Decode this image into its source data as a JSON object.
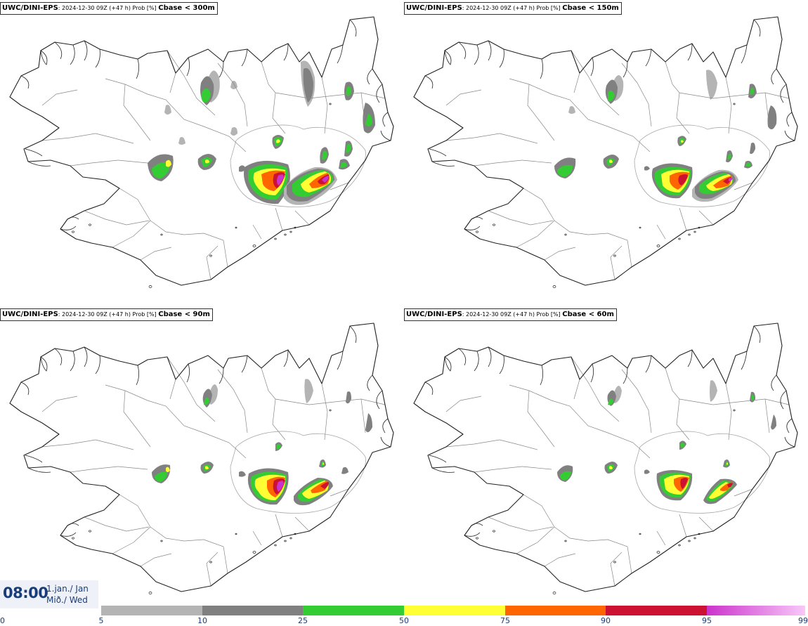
{
  "panels": [
    {
      "model": "UWC/DINI-EPS",
      "info": ": 2024-12-30 09Z (+47 h) Prob [%] ",
      "threshold": "Cbase < 300m"
    },
    {
      "model": "UWC/DINI-EPS",
      "info": ": 2024-12-30 09Z (+47 h) Prob [%] ",
      "threshold": "Cbase < 150m"
    },
    {
      "model": "UWC/DINI-EPS",
      "info": ": 2024-12-30 09Z (+47 h) Prob [%] ",
      "threshold": "Cbase < 90m"
    },
    {
      "model": "UWC/DINI-EPS",
      "info": ": 2024-12-30 09Z (+47 h) Prob [%] ",
      "threshold": "Cbase < 60m"
    }
  ],
  "time": {
    "clock": "08:00",
    "date_line1": "1.jan./ Jan",
    "date_line2": "Mið./ Wed"
  },
  "legend": {
    "ticks": [
      "0",
      "5",
      "10",
      "25",
      "50",
      "75",
      "90",
      "95",
      "99"
    ],
    "bins": [
      {
        "from": 5,
        "to": 10,
        "color": "#b4b4b4"
      },
      {
        "from": 10,
        "to": 25,
        "color": "#808080"
      },
      {
        "from": 25,
        "to": 50,
        "color": "#33cc33"
      },
      {
        "from": 50,
        "to": 75,
        "color": "#ffff33"
      },
      {
        "from": 75,
        "to": 90,
        "color": "#ff6600"
      },
      {
        "from": 90,
        "to": 95,
        "color": "#cc1133"
      },
      {
        "from": 95,
        "to": 99,
        "color": "#cc33cc",
        "to_color": "#f8c8f8"
      }
    ]
  },
  "colors": {
    "outline": "#222222",
    "border": "#888888",
    "accent": "#1a3c78"
  }
}
